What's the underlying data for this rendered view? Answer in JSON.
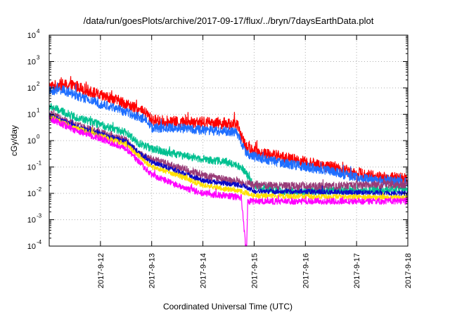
{
  "chart_data": {
    "type": "line",
    "title": "/data/run/goesPlots/archive/2017-09-17/flux/../bryn/7daysEarthData.plot",
    "xlabel": "Coordinated Universal Time (UTC)",
    "ylabel": "cGy/day",
    "x_range": [
      "2017-09-11T00:00",
      "2017-09-18T00:00"
    ],
    "x_ticks": [
      "2017-9-12",
      "2017-9-13",
      "2017-9-14",
      "2017-9-15",
      "2017-9-16",
      "2017-9-17",
      "2017-9-18"
    ],
    "y_scale": "log",
    "ylim": [
      0.0001,
      10000
    ],
    "y_ticks": [
      {
        "base": "10",
        "exp": "-4"
      },
      {
        "base": "10",
        "exp": "-3"
      },
      {
        "base": "10",
        "exp": "-2"
      },
      {
        "base": "10",
        "exp": "-1"
      },
      {
        "base": "10",
        "exp": "0"
      },
      {
        "base": "10",
        "exp": "1"
      },
      {
        "base": "10",
        "exp": "2"
      },
      {
        "base": "10",
        "exp": "3"
      },
      {
        "base": "10",
        "exp": "4"
      }
    ],
    "grid": true,
    "legend": "none",
    "series": [
      {
        "color": "#ff0000",
        "noise": 0.22,
        "x": [
          "2017-09-11T00:00",
          "2017-09-11T06:00",
          "2017-09-11T12:00",
          "2017-09-11T18:00",
          "2017-09-12T00:00",
          "2017-09-12T06:00",
          "2017-09-12T12:00",
          "2017-09-12T18:00",
          "2017-09-12T22:00",
          "2017-09-13T00:00",
          "2017-09-13T12:00",
          "2017-09-14T00:00",
          "2017-09-14T12:00",
          "2017-09-14T16:00",
          "2017-09-14T20:00",
          "2017-09-15T00:00",
          "2017-09-15T12:00",
          "2017-09-16T00:00",
          "2017-09-16T12:00",
          "2017-09-17T00:00",
          "2017-09-17T12:00",
          "2017-09-18T00:00"
        ],
        "y": [
          110,
          130,
          120,
          80,
          50,
          38,
          25,
          14,
          10,
          6,
          5,
          5,
          4.5,
          4,
          0.6,
          0.4,
          0.25,
          0.15,
          0.1,
          0.06,
          0.04,
          0.035
        ]
      },
      {
        "color": "#1e6eff",
        "noise": 0.18,
        "x": [
          "2017-09-11T00:00",
          "2017-09-11T06:00",
          "2017-09-11T12:00",
          "2017-09-11T18:00",
          "2017-09-12T00:00",
          "2017-09-12T06:00",
          "2017-09-12T12:00",
          "2017-09-12T18:00",
          "2017-09-12T22:00",
          "2017-09-13T00:00",
          "2017-09-13T12:00",
          "2017-09-14T00:00",
          "2017-09-14T12:00",
          "2017-09-14T16:00",
          "2017-09-14T20:00",
          "2017-09-15T00:00",
          "2017-09-15T12:00",
          "2017-09-16T00:00",
          "2017-09-16T12:00",
          "2017-09-17T00:00",
          "2017-09-17T12:00",
          "2017-09-18T00:00"
        ],
        "y": [
          75,
          85,
          55,
          35,
          25,
          18,
          12,
          8,
          6,
          3,
          3,
          2.5,
          2.2,
          2,
          0.35,
          0.25,
          0.15,
          0.1,
          0.07,
          0.04,
          0.03,
          0.025
        ]
      },
      {
        "color": "#00c090",
        "noise": 0.15,
        "x": [
          "2017-09-11T00:00",
          "2017-09-11T12:00",
          "2017-09-12T00:00",
          "2017-09-12T12:00",
          "2017-09-12T18:00",
          "2017-09-13T00:00",
          "2017-09-13T12:00",
          "2017-09-14T00:00",
          "2017-09-14T12:00",
          "2017-09-14T18:00",
          "2017-09-15T00:00",
          "2017-09-15T12:00",
          "2017-09-16T00:00",
          "2017-09-17T00:00",
          "2017-09-18T00:00"
        ],
        "y": [
          20,
          8,
          4,
          2,
          0.8,
          0.5,
          0.3,
          0.2,
          0.15,
          0.1,
          0.02,
          0.012,
          0.012,
          0.013,
          0.015
        ]
      },
      {
        "color": "#993c78",
        "noise": 0.15,
        "x": [
          "2017-09-11T00:00",
          "2017-09-11T12:00",
          "2017-09-12T00:00",
          "2017-09-12T12:00",
          "2017-09-12T18:00",
          "2017-09-13T00:00",
          "2017-09-13T12:00",
          "2017-09-14T00:00",
          "2017-09-14T12:00",
          "2017-09-14T18:00",
          "2017-09-15T00:00",
          "2017-09-16T00:00",
          "2017-09-17T00:00",
          "2017-09-18T00:00"
        ],
        "y": [
          10,
          4,
          2,
          1,
          0.3,
          0.2,
          0.1,
          0.05,
          0.03,
          0.025,
          0.02,
          0.018,
          0.02,
          0.022
        ]
      },
      {
        "color": "#0a0ac8",
        "noise": 0.1,
        "x": [
          "2017-09-11T00:00",
          "2017-09-11T12:00",
          "2017-09-12T00:00",
          "2017-09-12T12:00",
          "2017-09-13T00:00",
          "2017-09-13T12:00",
          "2017-09-14T00:00",
          "2017-09-14T18:00",
          "2017-09-15T00:00",
          "2017-09-18T00:00"
        ],
        "y": [
          9,
          3.5,
          1.8,
          0.9,
          0.15,
          0.07,
          0.03,
          0.02,
          0.012,
          0.01
        ]
      },
      {
        "color": "#ffe000",
        "noise": 0.1,
        "x": [
          "2017-09-11T00:00",
          "2017-09-11T12:00",
          "2017-09-12T00:00",
          "2017-09-12T12:00",
          "2017-09-13T00:00",
          "2017-09-13T12:00",
          "2017-09-14T00:00",
          "2017-09-14T18:00",
          "2017-09-15T00:00",
          "2017-09-18T00:00"
        ],
        "y": [
          8,
          3,
          1.5,
          0.7,
          0.1,
          0.05,
          0.02,
          0.012,
          0.008,
          0.007
        ]
      },
      {
        "color": "#ff00ff",
        "noise": 0.12,
        "x": [
          "2017-09-11T00:00",
          "2017-09-11T12:00",
          "2017-09-12T00:00",
          "2017-09-12T12:00",
          "2017-09-13T00:00",
          "2017-09-13T12:00",
          "2017-09-14T00:00",
          "2017-09-14T18:00",
          "2017-09-14T20:00",
          "2017-09-14T20:30",
          "2017-09-14T21:00",
          "2017-09-15T00:00",
          "2017-09-16T00:00",
          "2017-09-17T00:00",
          "2017-09-18T00:00"
        ],
        "y": [
          7,
          2.5,
          1.2,
          0.5,
          0.05,
          0.02,
          0.01,
          0.007,
          0.0001,
          0.0001,
          0.005,
          0.005,
          0.005,
          0.005,
          0.005
        ]
      }
    ]
  }
}
